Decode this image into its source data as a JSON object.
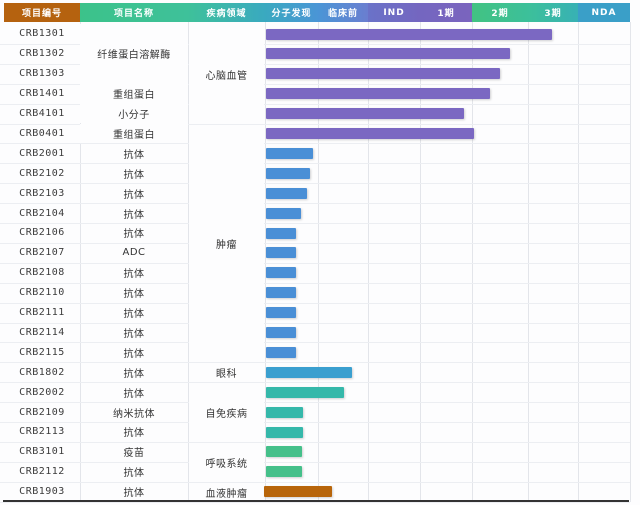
{
  "chart_data": {
    "type": "bar",
    "orientation": "horizontal",
    "title": "",
    "columns": [
      "项目编号",
      "项目名称",
      "疾病领域",
      "分子发现",
      "临床前",
      "IND",
      "1期",
      "2期",
      "3期",
      "NDA"
    ],
    "stages": [
      "分子发现",
      "临床前",
      "IND",
      "1期",
      "2期",
      "3期",
      "NDA"
    ],
    "xlim": [
      0,
      7
    ],
    "legend": "none",
    "grid": true,
    "rows": [
      {
        "id": "CRB1301",
        "name": "纤维蛋白溶解酶",
        "area": "心脑血管",
        "progress": 5.5,
        "color": "#7b68c2"
      },
      {
        "id": "CRB1302",
        "name": "纤维蛋白溶解酶",
        "area": "心脑血管",
        "progress": 4.7,
        "color": "#7b68c2"
      },
      {
        "id": "CRB1303",
        "name": "纤维蛋白溶解酶",
        "area": "心脑血管",
        "progress": 4.5,
        "color": "#7b68c2"
      },
      {
        "id": "CRB1401",
        "name": "重组蛋白",
        "area": "心脑血管",
        "progress": 4.3,
        "color": "#7b68c2"
      },
      {
        "id": "CRB4101",
        "name": "小分子",
        "area": "心脑血管",
        "progress": 3.8,
        "color": "#7b68c2"
      },
      {
        "id": "CRB0401",
        "name": "重组蛋白",
        "area": "肿瘤",
        "progress": 4.0,
        "color": "#7b68c2"
      },
      {
        "id": "CRB2001",
        "name": "抗体",
        "area": "肿瘤",
        "progress": 0.9,
        "color": "#4a8fd6"
      },
      {
        "id": "CRB2102",
        "name": "抗体",
        "area": "肿瘤",
        "progress": 0.85,
        "color": "#4a8fd6"
      },
      {
        "id": "CRB2103",
        "name": "抗体",
        "area": "肿瘤",
        "progress": 0.78,
        "color": "#4a8fd6"
      },
      {
        "id": "CRB2104",
        "name": "抗体",
        "area": "肿瘤",
        "progress": 0.68,
        "color": "#4a8fd6"
      },
      {
        "id": "CRB2106",
        "name": "抗体",
        "area": "肿瘤",
        "progress": 0.57,
        "color": "#4a8fd6"
      },
      {
        "id": "CRB2107",
        "name": "ADC",
        "area": "肿瘤",
        "progress": 0.57,
        "color": "#4a8fd6"
      },
      {
        "id": "CRB2108",
        "name": "抗体",
        "area": "肿瘤",
        "progress": 0.57,
        "color": "#4a8fd6"
      },
      {
        "id": "CRB2110",
        "name": "抗体",
        "area": "肿瘤",
        "progress": 0.57,
        "color": "#4a8fd6"
      },
      {
        "id": "CRB2111",
        "name": "抗体",
        "area": "肿瘤",
        "progress": 0.57,
        "color": "#4a8fd6"
      },
      {
        "id": "CRB2114",
        "name": "抗体",
        "area": "肿瘤",
        "progress": 0.57,
        "color": "#4a8fd6"
      },
      {
        "id": "CRB2115",
        "name": "抗体",
        "area": "肿瘤",
        "progress": 0.57,
        "color": "#4a8fd6"
      },
      {
        "id": "CRB1802",
        "name": "抗体",
        "area": "眼科",
        "progress": 1.65,
        "color": "#3a9fcf"
      },
      {
        "id": "CRB2002",
        "name": "抗体",
        "area": "自免疾病",
        "progress": 1.5,
        "color": "#35b8aa"
      },
      {
        "id": "CRB2109",
        "name": "纳米抗体",
        "area": "自免疾病",
        "progress": 0.72,
        "color": "#35b8aa"
      },
      {
        "id": "CRB2113",
        "name": "抗体",
        "area": "自免疾病",
        "progress": 0.72,
        "color": "#35b8aa"
      },
      {
        "id": "CRB3101",
        "name": "疫苗",
        "area": "呼吸系统",
        "progress": 0.7,
        "color": "#45c08a"
      },
      {
        "id": "CRB2112",
        "name": "抗体",
        "area": "呼吸系统",
        "progress": 0.7,
        "color": "#45c08a"
      },
      {
        "id": "CRB1903",
        "name": "抗体",
        "area": "血液肿瘤",
        "progress": 1.3,
        "color": "#b8650a"
      }
    ]
  },
  "header": {
    "col_id": "项目编号",
    "col_name": "项目名称",
    "col_area": "疾病领域",
    "stage_discovery": "分子发现",
    "stage_preclinical": "临床前",
    "stage_ind": "IND",
    "stage_p1": "1期",
    "stage_p2": "2期",
    "stage_p3": "3期",
    "stage_nda": "NDA"
  },
  "merged_names": [
    {
      "label": "纤维蛋白溶解酶",
      "rows": [
        0,
        2
      ]
    },
    {
      "label": "重组蛋白",
      "rows": [
        3,
        3
      ]
    },
    {
      "label": "小分子",
      "rows": [
        4,
        4
      ]
    },
    {
      "label": "重组蛋白",
      "rows": [
        5,
        5
      ]
    }
  ],
  "areas": [
    {
      "label": "心脑血管",
      "rows": [
        0,
        4
      ]
    },
    {
      "label": "肿瘤",
      "rows": [
        5,
        16
      ]
    },
    {
      "label": "眼科",
      "rows": [
        17,
        17
      ]
    },
    {
      "label": "自免疾病",
      "rows": [
        18,
        20
      ]
    },
    {
      "label": "呼吸系统",
      "rows": [
        21,
        22
      ]
    },
    {
      "label": "血液肿瘤",
      "rows": [
        23,
        23
      ]
    }
  ],
  "colors": {
    "header_id": "#b5620f",
    "cardio": "#7b68c2",
    "oncology": "#4a8fd6",
    "ophthalmology": "#3a9fcf",
    "autoimmune": "#35b8aa",
    "respiratory": "#45c08a",
    "hematologic": "#b8650a"
  }
}
